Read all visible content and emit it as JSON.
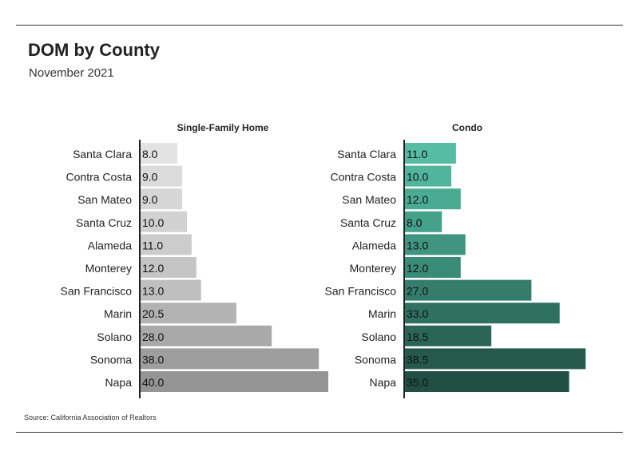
{
  "header": {
    "title": "DOM by County",
    "subtitle": "November 2021"
  },
  "footer": {
    "source": "Source:  California Association of Realtors"
  },
  "chart_data": [
    {
      "type": "bar",
      "orientation": "horizontal",
      "title": "Single-Family Home",
      "categories": [
        "Santa Clara",
        "Contra Costa",
        "San Mateo",
        "Santa Cruz",
        "Alameda",
        "Monterey",
        "San Francisco",
        "Marin",
        "Solano",
        "Sonoma",
        "Napa"
      ],
      "values": [
        8.0,
        9.0,
        9.0,
        10.0,
        11.0,
        12.0,
        13.0,
        20.5,
        28.0,
        38.0,
        40.0
      ],
      "colors": [
        "#e3e3e3",
        "#dbdbdb",
        "#d6d6d6",
        "#d1d1d1",
        "#cccccc",
        "#c5c5c5",
        "#bfbfbf",
        "#b3b3b3",
        "#a9a9a9",
        "#9e9e9e",
        "#959595"
      ],
      "xlim": [
        0,
        40
      ],
      "grid": false,
      "legend": "none"
    },
    {
      "type": "bar",
      "orientation": "horizontal",
      "title": "Condo",
      "categories": [
        "Santa Clara",
        "Contra Costa",
        "San Mateo",
        "Santa Cruz",
        "Alameda",
        "Monterey",
        "San Francisco",
        "Marin",
        "Solano",
        "Sonoma",
        "Napa"
      ],
      "values": [
        11.0,
        10.0,
        12.0,
        8.0,
        13.0,
        12.0,
        27.0,
        33.0,
        18.5,
        38.5,
        35.0
      ],
      "colors": [
        "#56bca3",
        "#50b59c",
        "#4aab93",
        "#44a18a",
        "#3f9580",
        "#3a8b77",
        "#347d6b",
        "#2f7161",
        "#2a6556",
        "#25594c",
        "#214f44"
      ],
      "xlim": [
        0,
        40
      ],
      "grid": false,
      "legend": "none"
    }
  ]
}
